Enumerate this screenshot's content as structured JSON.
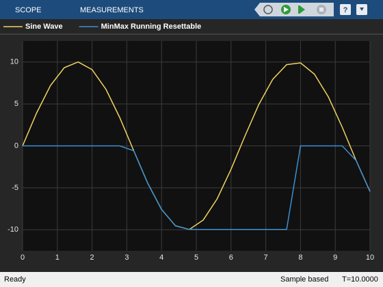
{
  "toolbar": {
    "tabs": [
      "SCOPE",
      "MEASUREMENTS"
    ]
  },
  "status_bar": {
    "state": "Ready",
    "mode": "Sample based",
    "time": "T=10.0000"
  },
  "chart_data": {
    "type": "line",
    "x": [
      0,
      0.4,
      0.8,
      1.2,
      1.6,
      2.0,
      2.4,
      2.8,
      3.2,
      3.6,
      4.0,
      4.4,
      4.8,
      5.2,
      5.6,
      6.0,
      6.4,
      6.8,
      7.2,
      7.6,
      8.0,
      8.4,
      8.8,
      9.2,
      9.6,
      10.0
    ],
    "series": [
      {
        "name": "Sine Wave",
        "color": "#f0d462",
        "values": [
          0,
          3.89,
          7.17,
          9.32,
          10.0,
          9.09,
          6.75,
          3.35,
          -0.58,
          -4.43,
          -7.57,
          -9.52,
          -9.96,
          -8.83,
          -6.31,
          -2.79,
          1.17,
          4.94,
          7.93,
          9.68,
          9.89,
          8.55,
          5.85,
          2.23,
          -1.74,
          -5.44
        ]
      },
      {
        "name": "MinMax Running Resettable",
        "color": "#3d8fd4",
        "values": [
          0,
          0,
          0,
          0,
          0,
          0,
          0,
          0,
          -0.58,
          -4.43,
          -7.57,
          -9.52,
          -9.96,
          -9.96,
          -9.96,
          -9.96,
          -9.96,
          -9.96,
          -9.96,
          -9.96,
          0,
          0,
          0,
          0,
          -1.74,
          -5.44
        ]
      }
    ],
    "xlim": [
      0,
      10
    ],
    "xticks": [
      0,
      1,
      2,
      3,
      4,
      5,
      6,
      7,
      8,
      9,
      10
    ],
    "ylim": [
      -12.5,
      12.5
    ],
    "yticks": [
      -10,
      -5,
      0,
      5,
      10
    ],
    "grid": true,
    "legend": "top"
  }
}
